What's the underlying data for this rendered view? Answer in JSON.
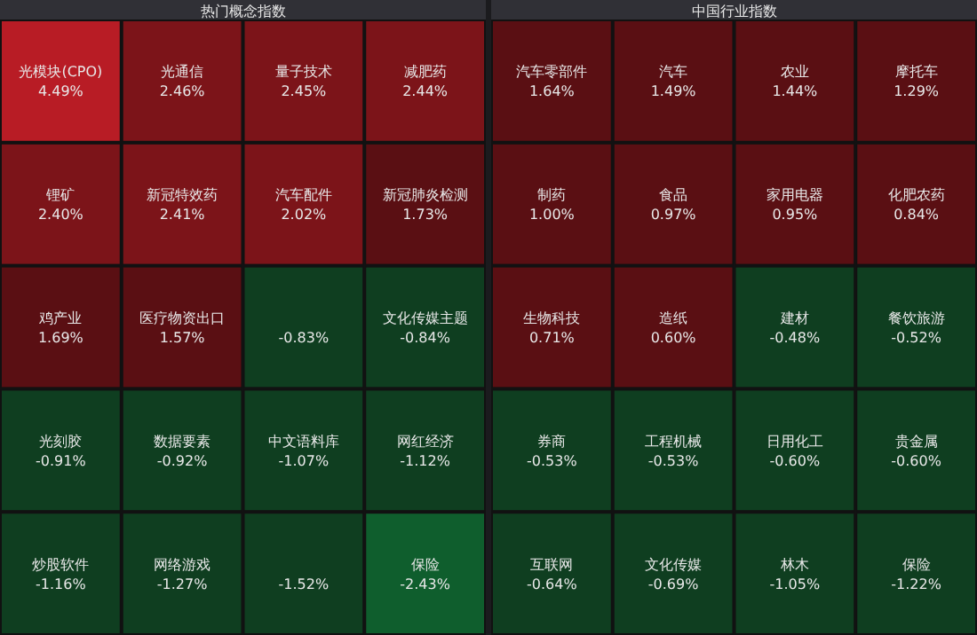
{
  "chart_data": [
    {
      "type": "other",
      "title": "热门概念指数",
      "categories": [
        "光模块(CPO)",
        "光通信",
        "量子技术",
        "减肥药",
        "锂矿",
        "新冠特效药",
        "汽车配件",
        "新冠肺炎检测",
        "鸡产业",
        "医疗物资出口",
        null,
        "文化传媒主题",
        "光刻胶",
        "数据要素",
        "中文语料库",
        "网红经济",
        "炒股软件",
        "网络游戏",
        null,
        "保险"
      ],
      "values": [
        4.49,
        2.46,
        2.45,
        2.44,
        2.4,
        2.41,
        2.02,
        1.73,
        1.69,
        1.57,
        -0.83,
        -0.84,
        -0.91,
        -0.92,
        -1.07,
        -1.12,
        -1.16,
        -1.27,
        -1.52,
        -2.43
      ],
      "value_labels": [
        "4.49%",
        "2.46%",
        "2.45%",
        "2.44%",
        "2.40%",
        "2.41%",
        "2.02%",
        "1.73%",
        "1.69%",
        "1.57%",
        "-0.83%",
        "-0.84%",
        "-0.91%",
        "-0.92%",
        "-1.07%",
        "-1.12%",
        "-1.16%",
        "-1.27%",
        "-1.52%",
        "-2.43%"
      ]
    },
    {
      "type": "other",
      "title": "中国行业指数",
      "categories": [
        "汽车零部件",
        "汽车",
        "农业",
        "摩托车",
        "制药",
        "食品",
        "家用电器",
        "化肥农药",
        "生物科技",
        "造纸",
        "建材",
        "餐饮旅游",
        "券商",
        "工程机械",
        "日用化工",
        "贵金属",
        "互联网",
        "文化传媒",
        "林木",
        "保险"
      ],
      "values": [
        1.64,
        1.49,
        1.44,
        1.29,
        1.0,
        0.97,
        0.95,
        0.84,
        0.71,
        0.6,
        -0.48,
        -0.52,
        -0.53,
        -0.53,
        -0.6,
        -0.6,
        -0.64,
        -0.69,
        -1.05,
        -1.22
      ],
      "value_labels": [
        "1.64%",
        "1.49%",
        "1.44%",
        "1.29%",
        "1.00%",
        "0.97%",
        "0.95%",
        "0.84%",
        "0.71%",
        "0.60%",
        "-0.48%",
        "-0.52%",
        "-0.53%",
        "-0.53%",
        "-0.60%",
        "-0.60%",
        "-0.64%",
        "-0.69%",
        "-1.05%",
        "-1.22%"
      ]
    }
  ]
}
